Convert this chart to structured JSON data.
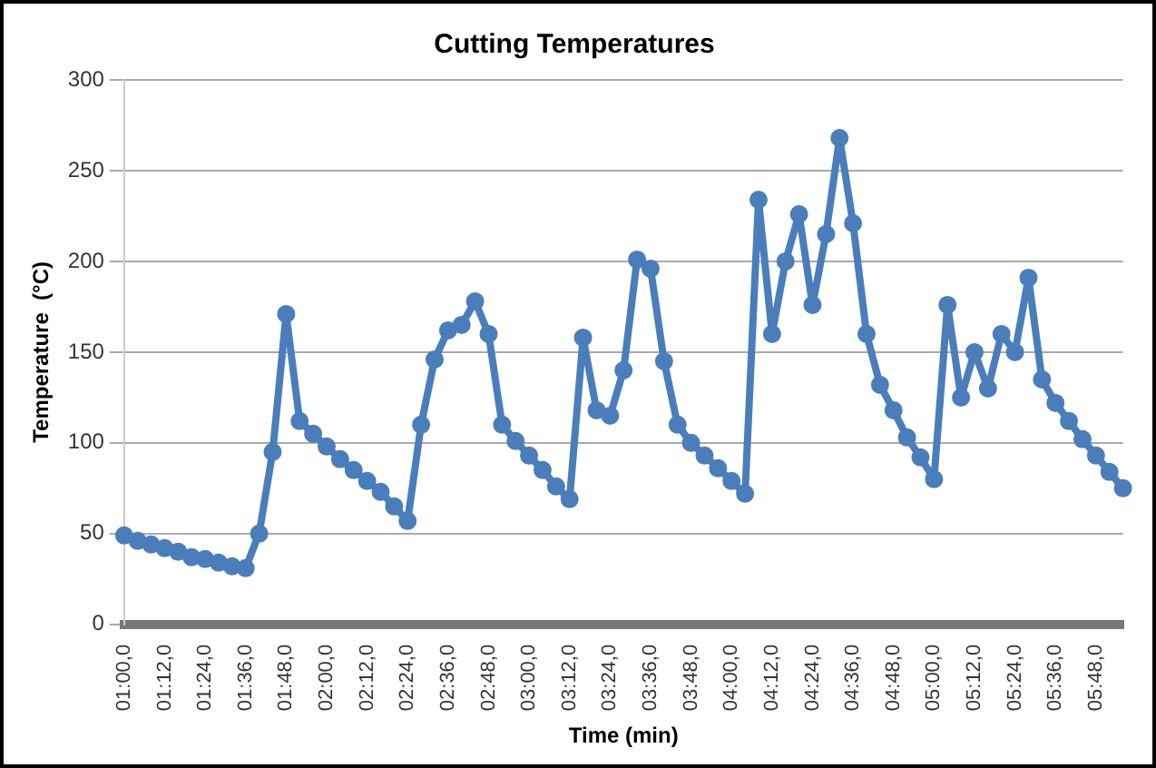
{
  "chart_data": {
    "type": "line",
    "title": "Cutting Temperatures",
    "xlabel": "Time (min)",
    "ylabel": "Temperature  (°C)",
    "categories": [
      "01:00,0",
      null,
      null,
      "01:12,0",
      null,
      null,
      "01:24,0",
      null,
      null,
      "01:36,0",
      null,
      null,
      "01:48,0",
      null,
      null,
      "02:00,0",
      null,
      null,
      "02:12,0",
      null,
      null,
      "02:24,0",
      null,
      null,
      "02:36,0",
      null,
      null,
      "02:48,0",
      null,
      null,
      "03:00,0",
      null,
      null,
      "03:12,0",
      null,
      null,
      "03:24,0",
      null,
      null,
      "03:36,0",
      null,
      null,
      "03:48,0",
      null,
      null,
      "04:00,0",
      null,
      null,
      "04:12,0",
      null,
      null,
      "04:24,0",
      null,
      null,
      "04:36,0",
      null,
      null,
      "04:48,0",
      null,
      null,
      "05:00,0",
      null,
      null,
      "05:12,0",
      null,
      null,
      "05:24,0",
      null,
      null,
      "05:36,0",
      null,
      null,
      "05:48,0",
      null,
      null
    ],
    "series": [
      {
        "color": "#4a7ebb",
        "values": [
          49,
          46,
          44,
          42,
          40,
          37,
          36,
          34,
          32,
          31,
          50,
          95,
          171,
          112,
          105,
          98,
          91,
          85,
          79,
          73,
          65,
          57,
          110,
          146,
          162,
          165,
          178,
          160,
          110,
          101,
          93,
          85,
          76,
          69,
          158,
          118,
          115,
          140,
          201,
          196,
          145,
          110,
          100,
          93,
          86,
          79,
          72,
          234,
          160,
          200,
          226,
          176,
          215,
          268,
          221,
          160,
          132,
          118,
          103,
          92,
          80,
          176,
          125,
          150,
          130,
          160,
          150,
          191,
          135,
          122,
          112,
          102,
          93,
          84,
          75
        ]
      }
    ],
    "ylim": [
      0,
      300
    ],
    "yticks": [
      0,
      50,
      100,
      150,
      200,
      250,
      300
    ],
    "grid": "y",
    "legend": false,
    "marker": "circle",
    "line_style": "solid"
  }
}
